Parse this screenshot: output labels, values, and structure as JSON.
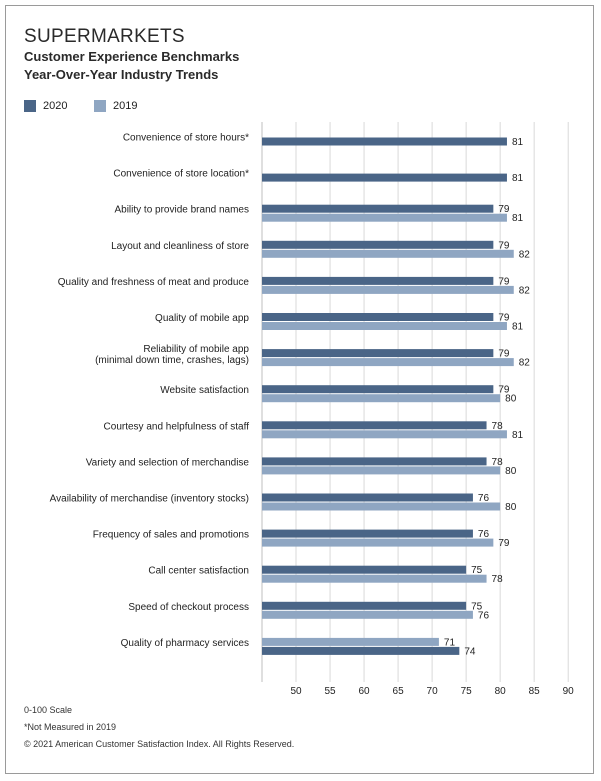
{
  "header": {
    "title": "SUPERMARKETS",
    "subtitle1": "Customer Experience Benchmarks",
    "subtitle2": "Year-Over-Year Industry Trends"
  },
  "legend": [
    {
      "label": "2020",
      "color": "#4a6587"
    },
    {
      "label": "2019",
      "color": "#8fa6c2"
    }
  ],
  "footer": {
    "scale_note": "0-100 Scale",
    "asterisk_note": "*Not Measured in 2019",
    "copyright": "© 2021 American Customer Satisfaction Index. All Rights Reserved."
  },
  "chart_data": {
    "type": "bar",
    "orientation": "horizontal",
    "categories": [
      [
        "Convenience of store hours*"
      ],
      [
        "Convenience of store location*"
      ],
      [
        "Ability to provide brand names"
      ],
      [
        "Layout and cleanliness of store"
      ],
      [
        "Quality and freshness of meat and produce"
      ],
      [
        "Quality of mobile app"
      ],
      [
        "Reliability of mobile app",
        "(minimal down time, crashes, lags)"
      ],
      [
        "Website satisfaction"
      ],
      [
        "Courtesy and helpfulness of staff"
      ],
      [
        "Variety and selection of merchandise"
      ],
      [
        "Availability of merchandise (inventory stocks)"
      ],
      [
        "Frequency of sales and promotions"
      ],
      [
        "Call center satisfaction"
      ],
      [
        "Speed of checkout process"
      ],
      [
        "Quality of pharmacy services"
      ]
    ],
    "series": [
      {
        "name": "2020",
        "color": "#4a6587",
        "values": [
          81,
          81,
          79,
          79,
          79,
          79,
          79,
          79,
          78,
          78,
          76,
          76,
          75,
          75,
          74
        ]
      },
      {
        "name": "2019",
        "color": "#8fa6c2",
        "values": [
          null,
          null,
          81,
          82,
          82,
          81,
          82,
          80,
          81,
          80,
          80,
          79,
          78,
          76,
          71
        ]
      }
    ],
    "reversed_order_last_row": true,
    "xlim": [
      45,
      91
    ],
    "xticks": [
      50,
      55,
      60,
      65,
      70,
      75,
      80,
      85,
      90
    ],
    "grid": true
  }
}
